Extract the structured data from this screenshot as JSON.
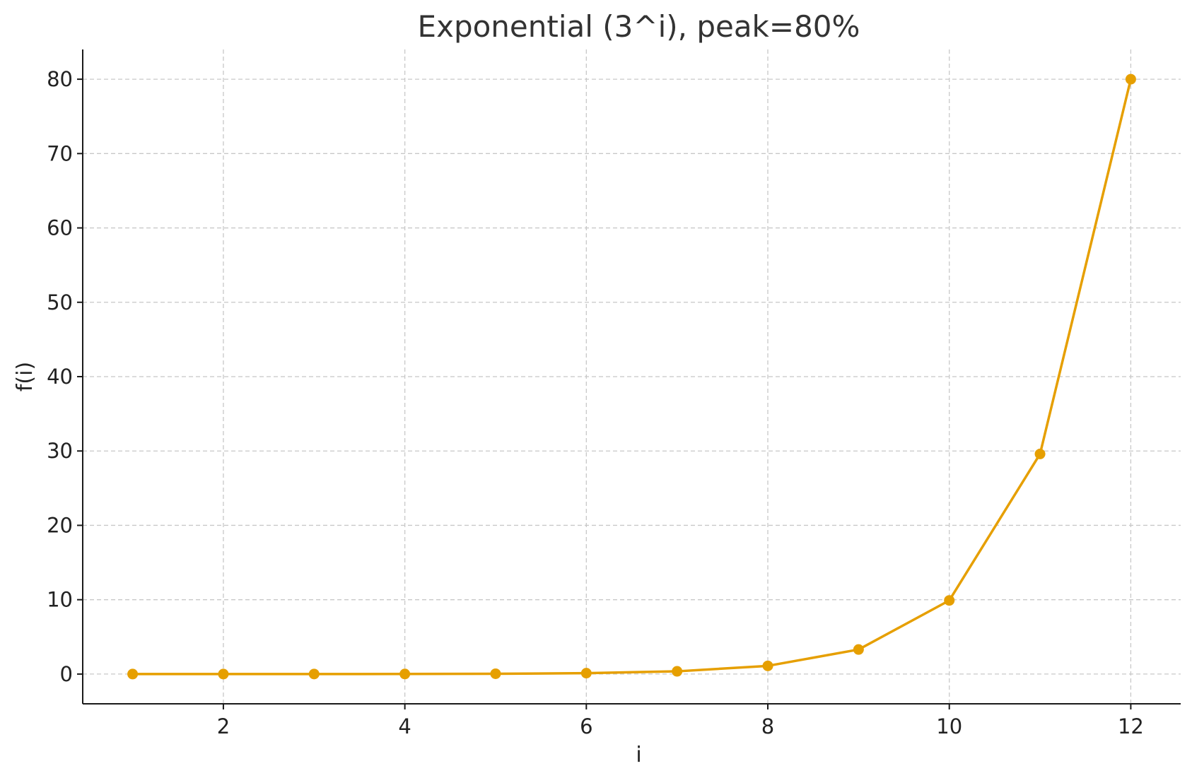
{
  "chart_data": {
    "type": "line",
    "title": "Exponential (3^i), peak=80%",
    "xlabel": "i",
    "ylabel": "f(i)",
    "x": [
      1,
      2,
      3,
      4,
      5,
      6,
      7,
      8,
      9,
      10,
      11,
      12
    ],
    "series": [
      {
        "values": [
          0.0005,
          0.0015,
          0.0045,
          0.0135,
          0.041,
          0.122,
          0.366,
          1.1,
          3.3,
          9.9,
          29.6,
          80.0
        ],
        "color": "#E69F00"
      }
    ],
    "xlim": [
      0.45,
      12.55
    ],
    "ylim": [
      -4,
      84
    ],
    "xticks": [
      2,
      4,
      6,
      8,
      10,
      12
    ],
    "yticks": [
      0,
      10,
      20,
      30,
      40,
      50,
      60,
      70,
      80
    ],
    "grid": true,
    "marker": "circle"
  }
}
